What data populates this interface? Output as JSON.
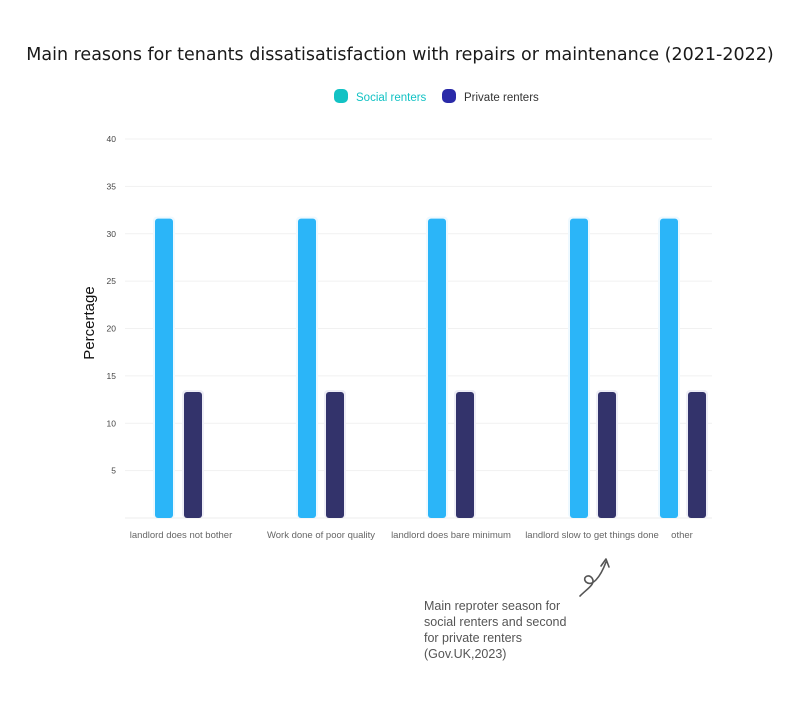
{
  "chart_data": {
    "type": "bar",
    "title": "Main reasons for tenants dissatisatisfaction with repairs or maintenance (2021-2022)",
    "xlabel": "",
    "ylabel": "Percertage",
    "ylim": [
      0,
      40
    ],
    "yticks": [
      5,
      10,
      15,
      20,
      25,
      30,
      35,
      40
    ],
    "grid": true,
    "legend_position": "top-center",
    "categories": [
      "landlord does not bother",
      "Work done of poor quality",
      "landlord does bare minimum",
      "landlord slow to get things done",
      "other"
    ],
    "series": [
      {
        "name": "Social renters",
        "color": "#2bb5f8",
        "legend_color": "#12c2c4",
        "values": [
          31.6,
          31.6,
          31.6,
          31.6,
          31.6
        ]
      },
      {
        "name": "Private renters",
        "color": "#33336b",
        "legend_color": "#2a2aa8",
        "values": [
          13.3,
          13.3,
          13.3,
          13.3,
          13.3
        ]
      }
    ],
    "annotation": {
      "lines": [
        "Main reproter season for",
        "social renters and second",
        "for private renters",
        "(Gov.UK,2023)"
      ],
      "target_category": "landlord slow to get things done"
    }
  }
}
